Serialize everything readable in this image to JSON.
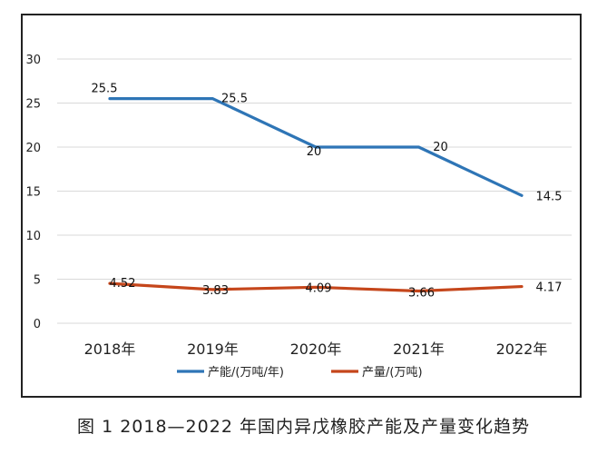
{
  "caption": "图 1  2018—2022 年国内异戊橡胶产能及产量变化趋势",
  "chart_data": {
    "type": "line",
    "categories": [
      "2018年",
      "2019年",
      "2020年",
      "2021年",
      "2022年"
    ],
    "series": [
      {
        "name": "产能/(万吨/年)",
        "values": [
          25.5,
          25.5,
          20,
          20,
          14.5
        ],
        "labels": [
          "25.5",
          "25.5",
          "20",
          "20",
          "14.5"
        ],
        "color": "#2e75b6"
      },
      {
        "name": "产量/(万吨)",
        "values": [
          4.52,
          3.83,
          4.09,
          3.66,
          4.17
        ],
        "labels": [
          "4.52",
          "3.83",
          "4.09",
          "3.66",
          "4.17"
        ],
        "color": "#c5461b"
      }
    ],
    "ylim": [
      0,
      30
    ],
    "yticks": [
      "0",
      "5",
      "10",
      "15",
      "20",
      "25",
      "30"
    ],
    "grid": true,
    "legend": "bottom",
    "title": "",
    "xlabel": "",
    "ylabel": ""
  }
}
